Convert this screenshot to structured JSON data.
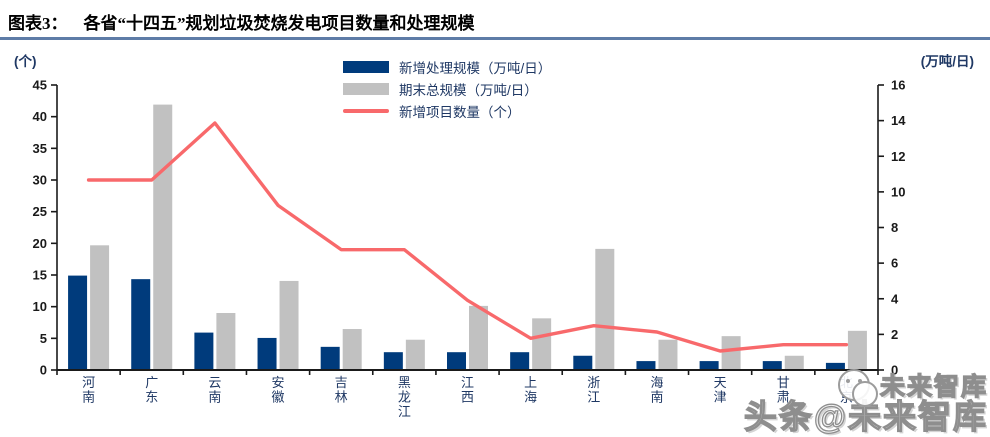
{
  "header": {
    "chart_label": "图表3：",
    "title": "各省“十四五”规划垃圾焚烧发电项目数量和处理规模"
  },
  "colors": {
    "title_rule": "#5E7CA7",
    "bar_new": "#003B7C",
    "bar_total": "#C1C1C1",
    "line_new_projects": "#F8696B",
    "axis": "#1a1a1a",
    "tick_text": "#1a1a1a",
    "category_text": "#1F3864",
    "legend_text": "#1F3864"
  },
  "watermark": {
    "line1": "未来智库",
    "line2": "头条@未来智库",
    "logo": "snowflake-avatar-icon"
  },
  "chart_data": {
    "type": "bar",
    "subtype": "dual-axis bar + line",
    "grid": false,
    "legend_position": "top-center",
    "categories": [
      "河南",
      "广东",
      "云南",
      "安徽",
      "吉林",
      "黑龙江",
      "江西",
      "上海",
      "浙江",
      "海南",
      "天津",
      "甘肃",
      "北京"
    ],
    "left_axis": {
      "label": "(个)",
      "min": 0,
      "max": 45,
      "step": 5
    },
    "right_axis": {
      "label": "(万吨/日)",
      "min": 0,
      "max": 16,
      "step": 2
    },
    "series": [
      {
        "name": "新增处理规模（万吨/日）",
        "type": "bar",
        "axis": "right",
        "color": "#003B7C",
        "values": [
          5.3,
          5.1,
          2.1,
          1.8,
          1.3,
          1.0,
          1.0,
          1.0,
          0.8,
          0.5,
          0.5,
          0.5,
          0.4
        ]
      },
      {
        "name": "期末总规模（万吨/日）",
        "type": "bar",
        "axis": "right",
        "color": "#C1C1C1",
        "values": [
          7.0,
          14.9,
          3.2,
          5.0,
          2.3,
          1.7,
          3.6,
          2.9,
          6.8,
          1.7,
          1.9,
          0.8,
          2.2
        ]
      },
      {
        "name": "新增项目数量（个）",
        "type": "line",
        "axis": "left",
        "color": "#F8696B",
        "values": [
          30,
          30,
          39,
          26,
          19,
          19,
          11,
          5,
          7,
          6,
          3,
          4,
          4
        ]
      }
    ]
  }
}
